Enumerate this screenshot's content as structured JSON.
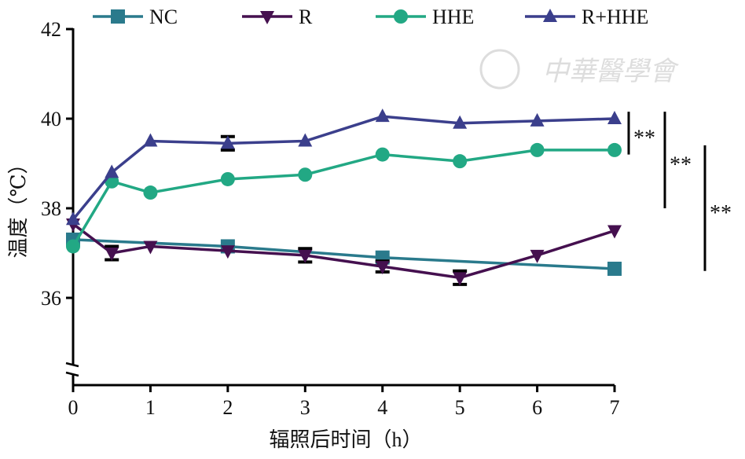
{
  "watermark": "中華醫學會",
  "chart_data": {
    "type": "line",
    "title": "",
    "xlabel": "辐照后时间（h）",
    "ylabel": "温度（℃）",
    "xlim": [
      0,
      7
    ],
    "ylim": [
      34,
      42
    ],
    "xticks": [
      "0",
      "1",
      "2",
      "3",
      "4",
      "5",
      "6",
      "7"
    ],
    "yticks": [
      "36",
      "38",
      "40",
      "42"
    ],
    "legend_position": "top",
    "series": [
      {
        "name": "NC",
        "color": "#2a7a8c",
        "marker": "square",
        "x": [
          0,
          2,
          4,
          7
        ],
        "y": [
          37.3,
          37.15,
          36.9,
          36.65
        ],
        "err": [
          0,
          0,
          0,
          0
        ]
      },
      {
        "name": "R",
        "color": "#45104f",
        "marker": "triangle-down",
        "x": [
          0,
          0.5,
          1,
          2,
          3,
          4,
          5,
          6,
          7
        ],
        "y": [
          37.65,
          37.0,
          37.15,
          37.05,
          36.95,
          36.7,
          36.45,
          36.95,
          37.5
        ],
        "err": [
          0,
          0.15,
          0,
          0,
          0.15,
          0.12,
          0.15,
          0,
          0
        ]
      },
      {
        "name": "HHE",
        "color": "#22a884",
        "marker": "circle",
        "x": [
          0,
          0.5,
          1,
          2,
          3,
          4,
          5,
          6,
          7
        ],
        "y": [
          37.15,
          38.6,
          38.35,
          38.65,
          38.75,
          39.2,
          39.05,
          39.3,
          39.3
        ],
        "err": [
          0,
          0,
          0,
          0,
          0,
          0,
          0,
          0,
          0
        ]
      },
      {
        "name": "R+HHE",
        "color": "#3b3f8c",
        "marker": "triangle-up",
        "x": [
          0,
          0.5,
          1,
          2,
          3,
          4,
          5,
          6,
          7
        ],
        "y": [
          37.75,
          38.8,
          39.5,
          39.45,
          39.5,
          40.05,
          39.9,
          39.95,
          40.0
        ],
        "err": [
          0,
          0,
          0,
          0.15,
          0,
          0,
          0,
          0,
          0
        ]
      }
    ],
    "annotations": [
      {
        "label": "**",
        "from": 40.05,
        "to": 39.2
      },
      {
        "label": "**",
        "from": 40.05,
        "to": 38.0
      },
      {
        "label": "**",
        "from": 39.3,
        "to": 36.6
      }
    ]
  }
}
